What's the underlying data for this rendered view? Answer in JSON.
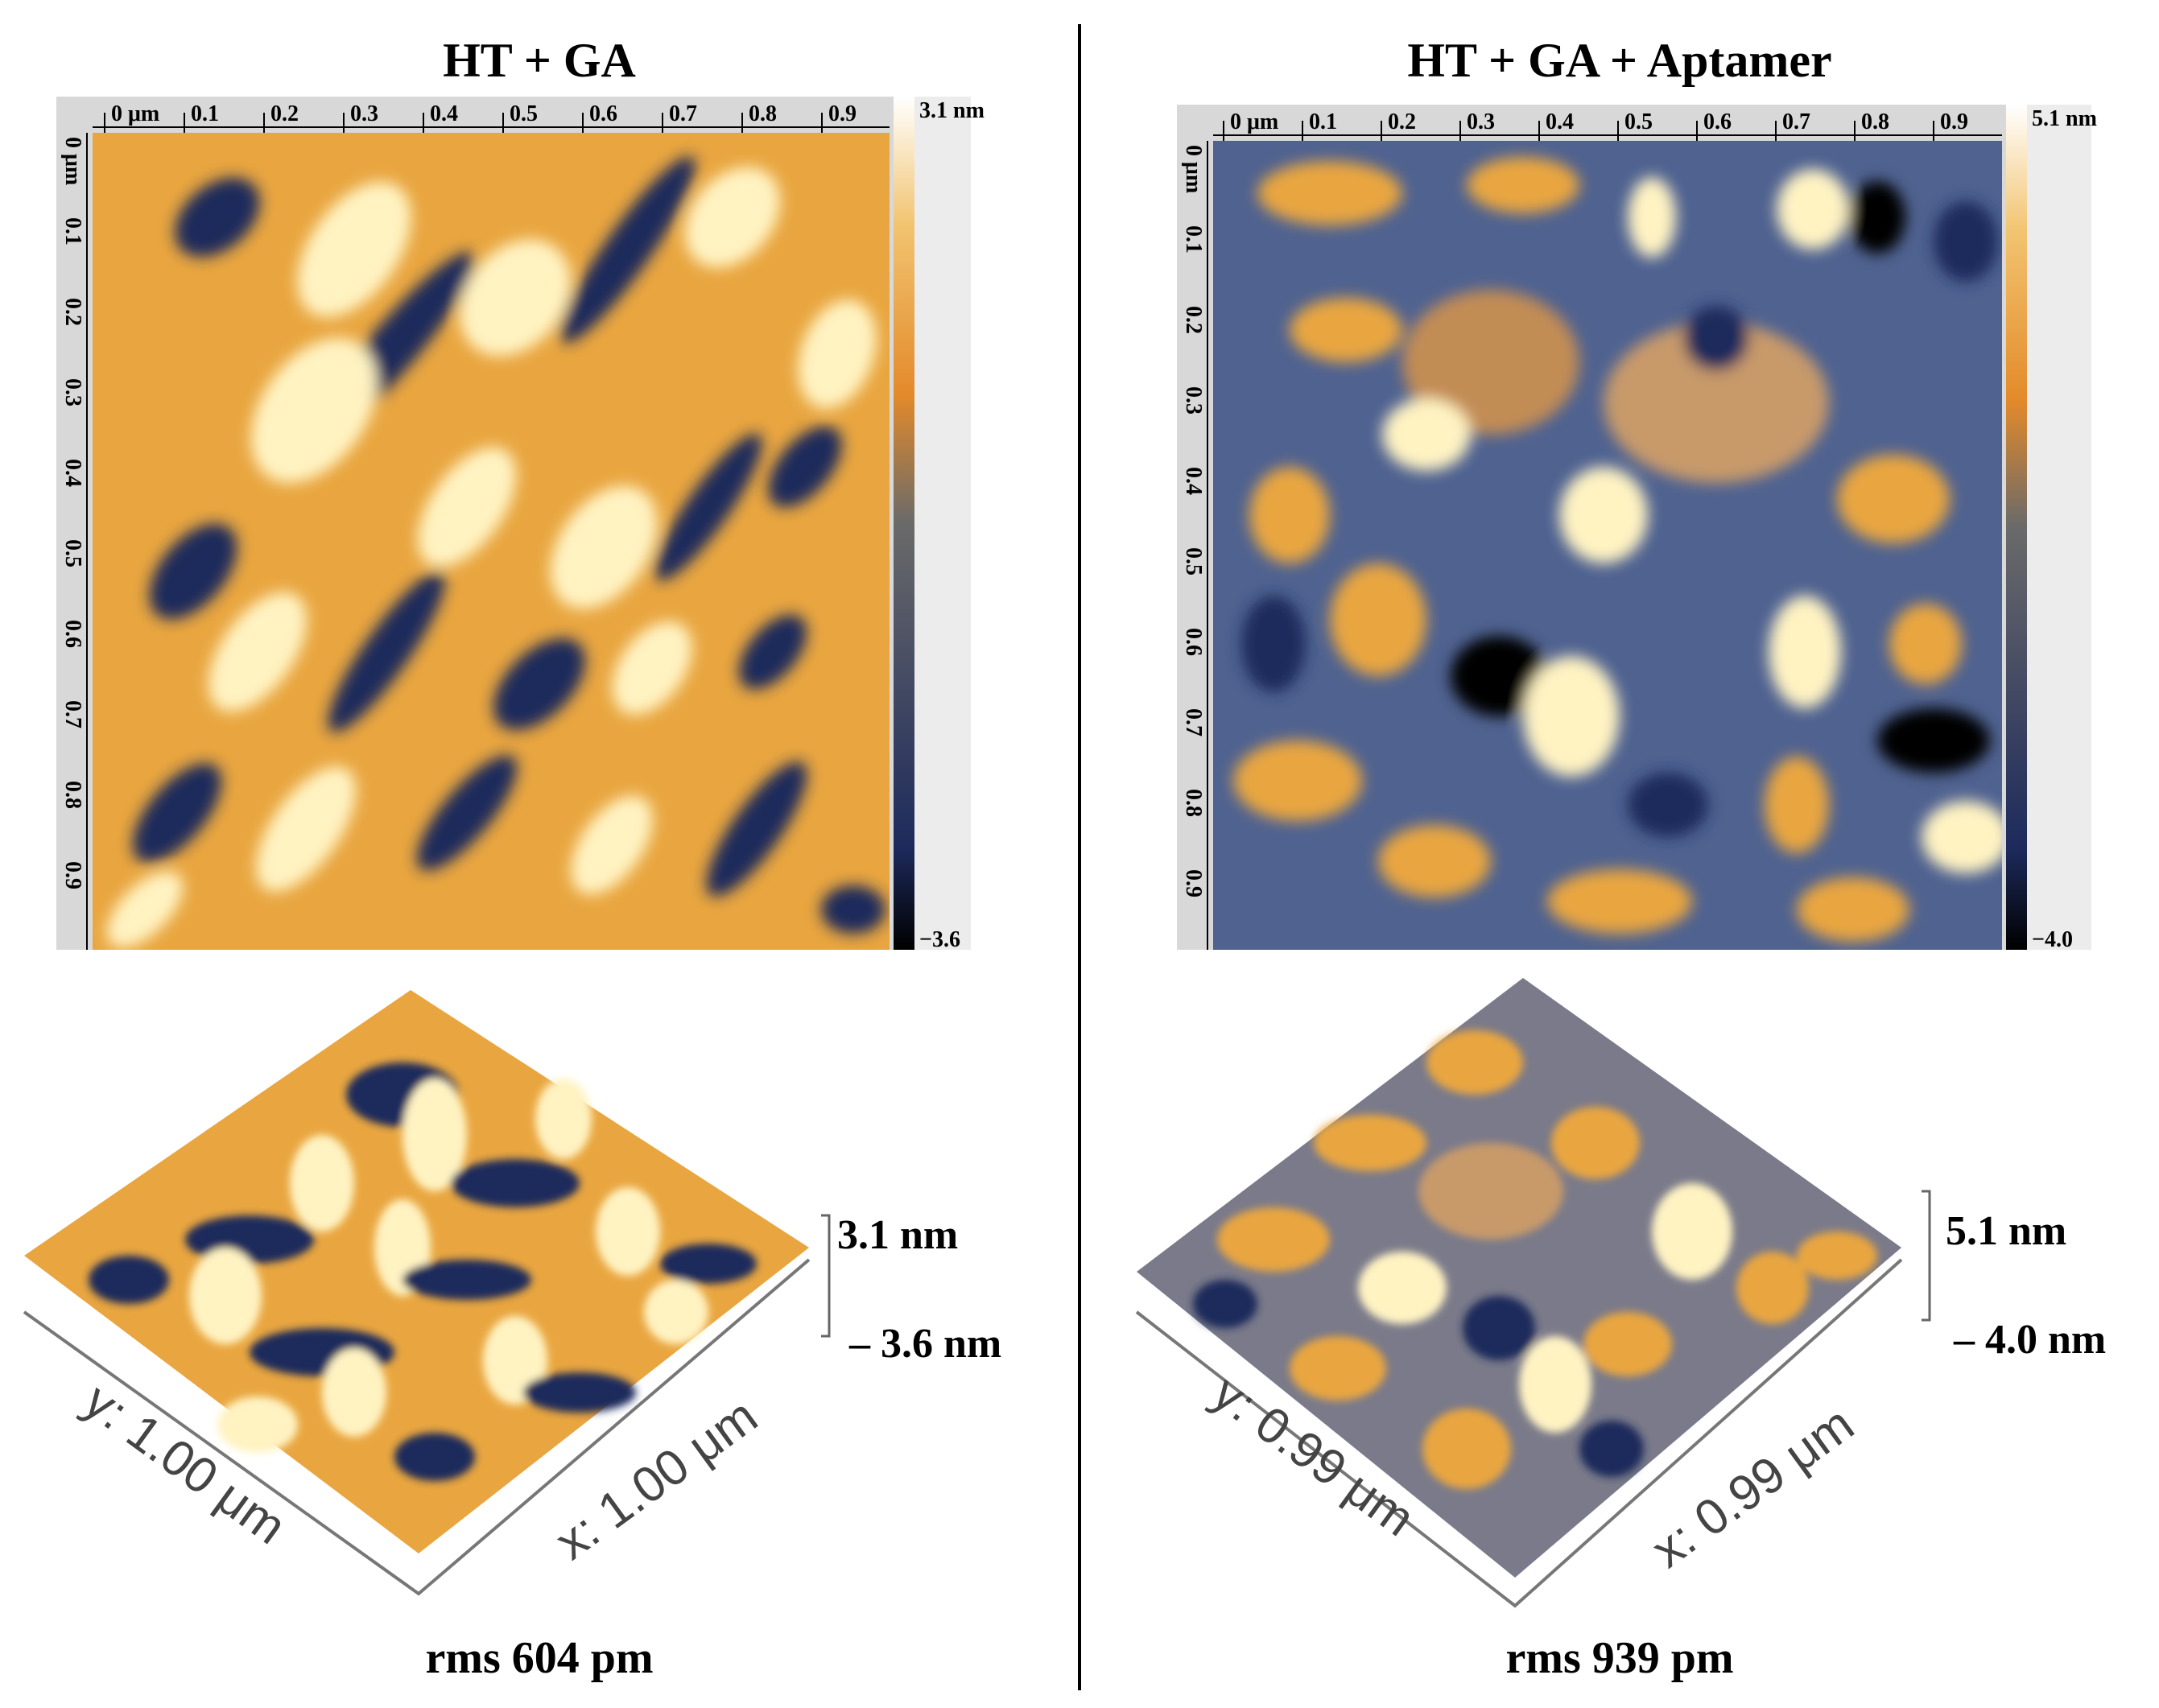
{
  "colors": {
    "dark_blue": "#1d2a5c",
    "mid_blue": "#3a5288",
    "orange": "#e9a640",
    "light_yellow": "#fff3c2",
    "divider": "#000000"
  },
  "panels": [
    {
      "title": "HT + GA",
      "ruler_x_ticks": [
        "0 μm",
        "0.1",
        "0.2",
        "0.3",
        "0.4",
        "0.5",
        "0.6",
        "0.7",
        "0.8",
        "0.9"
      ],
      "ruler_y_ticks": [
        "0 μm",
        "0.1",
        "0.2",
        "0.3",
        "0.4",
        "0.5",
        "0.6",
        "0.7",
        "0.8",
        "0.9"
      ],
      "colorbar_max": "3.1 nm",
      "colorbar_min": "−3.6",
      "surface_x_label": "x: 1.00 μm",
      "surface_y_label": "y: 1.00 μm",
      "scale_top": "3.1 nm",
      "scale_bottom": "– 3.6 nm",
      "rms": "rms 604 pm"
    },
    {
      "title": "HT + GA + Aptamer",
      "ruler_x_ticks": [
        "0 μm",
        "0.1",
        "0.2",
        "0.3",
        "0.4",
        "0.5",
        "0.6",
        "0.7",
        "0.8",
        "0.9"
      ],
      "ruler_y_ticks": [
        "0 μm",
        "0.1",
        "0.2",
        "0.3",
        "0.4",
        "0.5",
        "0.6",
        "0.7",
        "0.8",
        "0.9"
      ],
      "colorbar_max": "5.1 nm",
      "colorbar_min": "−4.0",
      "surface_x_label": "x: 0.99 μm",
      "surface_y_label": "y: 0.99 μm",
      "scale_top": "5.1 nm",
      "scale_bottom": "– 4.0 nm",
      "rms": "rms 939 pm"
    }
  ]
}
